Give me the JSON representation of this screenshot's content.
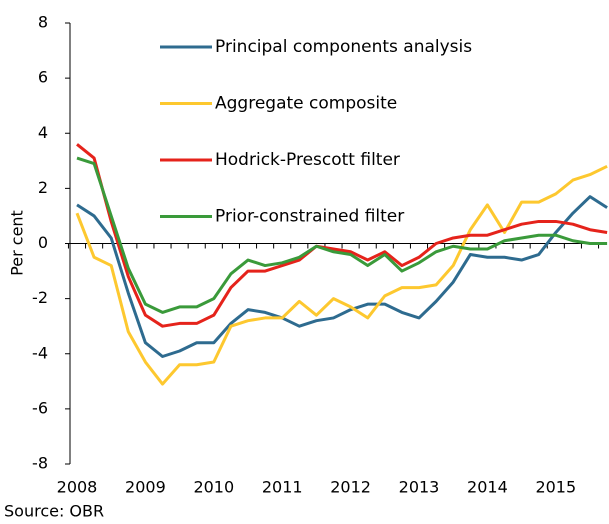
{
  "chart_data": {
    "type": "line",
    "y_label": "Per cent",
    "source": "Source: OBR",
    "categories": [
      "2008",
      null,
      null,
      null,
      "2009",
      null,
      null,
      null,
      "2010",
      null,
      null,
      null,
      "2011",
      null,
      null,
      null,
      "2012",
      null,
      null,
      null,
      "2013",
      null,
      null,
      null,
      "2014",
      null,
      null,
      null,
      "2015",
      null,
      null,
      null
    ],
    "series": [
      {
        "name": "Principal components analysis",
        "color": "#2e6b8f",
        "values": [
          1.4,
          1.0,
          0.2,
          -1.8,
          -3.6,
          -4.1,
          -3.9,
          -3.6,
          -3.6,
          -2.9,
          -2.4,
          -2.5,
          -2.7,
          -3.0,
          -2.8,
          -2.7,
          -2.4,
          -2.2,
          -2.2,
          -2.5,
          -2.7,
          -2.1,
          -1.4,
          -0.4,
          -0.5,
          -0.5,
          -0.6,
          -0.4,
          0.4,
          1.1,
          1.7,
          1.3
        ]
      },
      {
        "name": "Aggregate composite",
        "color": "#fdc82f",
        "values": [
          1.1,
          -0.5,
          -0.8,
          -3.2,
          -4.3,
          -5.1,
          -4.4,
          -4.4,
          -4.3,
          -3.0,
          -2.8,
          -2.7,
          -2.7,
          -2.1,
          -2.6,
          -2.0,
          -2.3,
          -2.7,
          -1.9,
          -1.6,
          -1.6,
          -1.5,
          -0.8,
          0.5,
          1.4,
          0.4,
          1.5,
          1.5,
          1.8,
          2.3,
          2.5,
          2.8
        ]
      },
      {
        "name": "Hodrick-Prescott filter",
        "color": "#e5231b",
        "values": [
          3.6,
          3.1,
          0.8,
          -1.2,
          -2.6,
          -3.0,
          -2.9,
          -2.9,
          -2.6,
          -1.6,
          -1.0,
          -1.0,
          -0.8,
          -0.6,
          -0.1,
          -0.2,
          -0.3,
          -0.6,
          -0.3,
          -0.8,
          -0.5,
          0.0,
          0.2,
          0.3,
          0.3,
          0.5,
          0.7,
          0.8,
          0.8,
          0.7,
          0.5,
          0.4
        ]
      },
      {
        "name": "Prior-constrained filter",
        "color": "#3a9a3a",
        "values": [
          3.1,
          2.9,
          1.0,
          -0.9,
          -2.2,
          -2.5,
          -2.3,
          -2.3,
          -2.0,
          -1.1,
          -0.6,
          -0.8,
          -0.7,
          -0.5,
          -0.1,
          -0.3,
          -0.4,
          -0.8,
          -0.4,
          -1.0,
          -0.7,
          -0.3,
          -0.1,
          -0.2,
          -0.2,
          0.1,
          0.2,
          0.3,
          0.3,
          0.1,
          0.0,
          0.0
        ]
      }
    ],
    "ylim": [
      -8,
      8
    ],
    "yticks": [
      -8,
      -6,
      -4,
      -2,
      0,
      2,
      4,
      6,
      8
    ]
  }
}
